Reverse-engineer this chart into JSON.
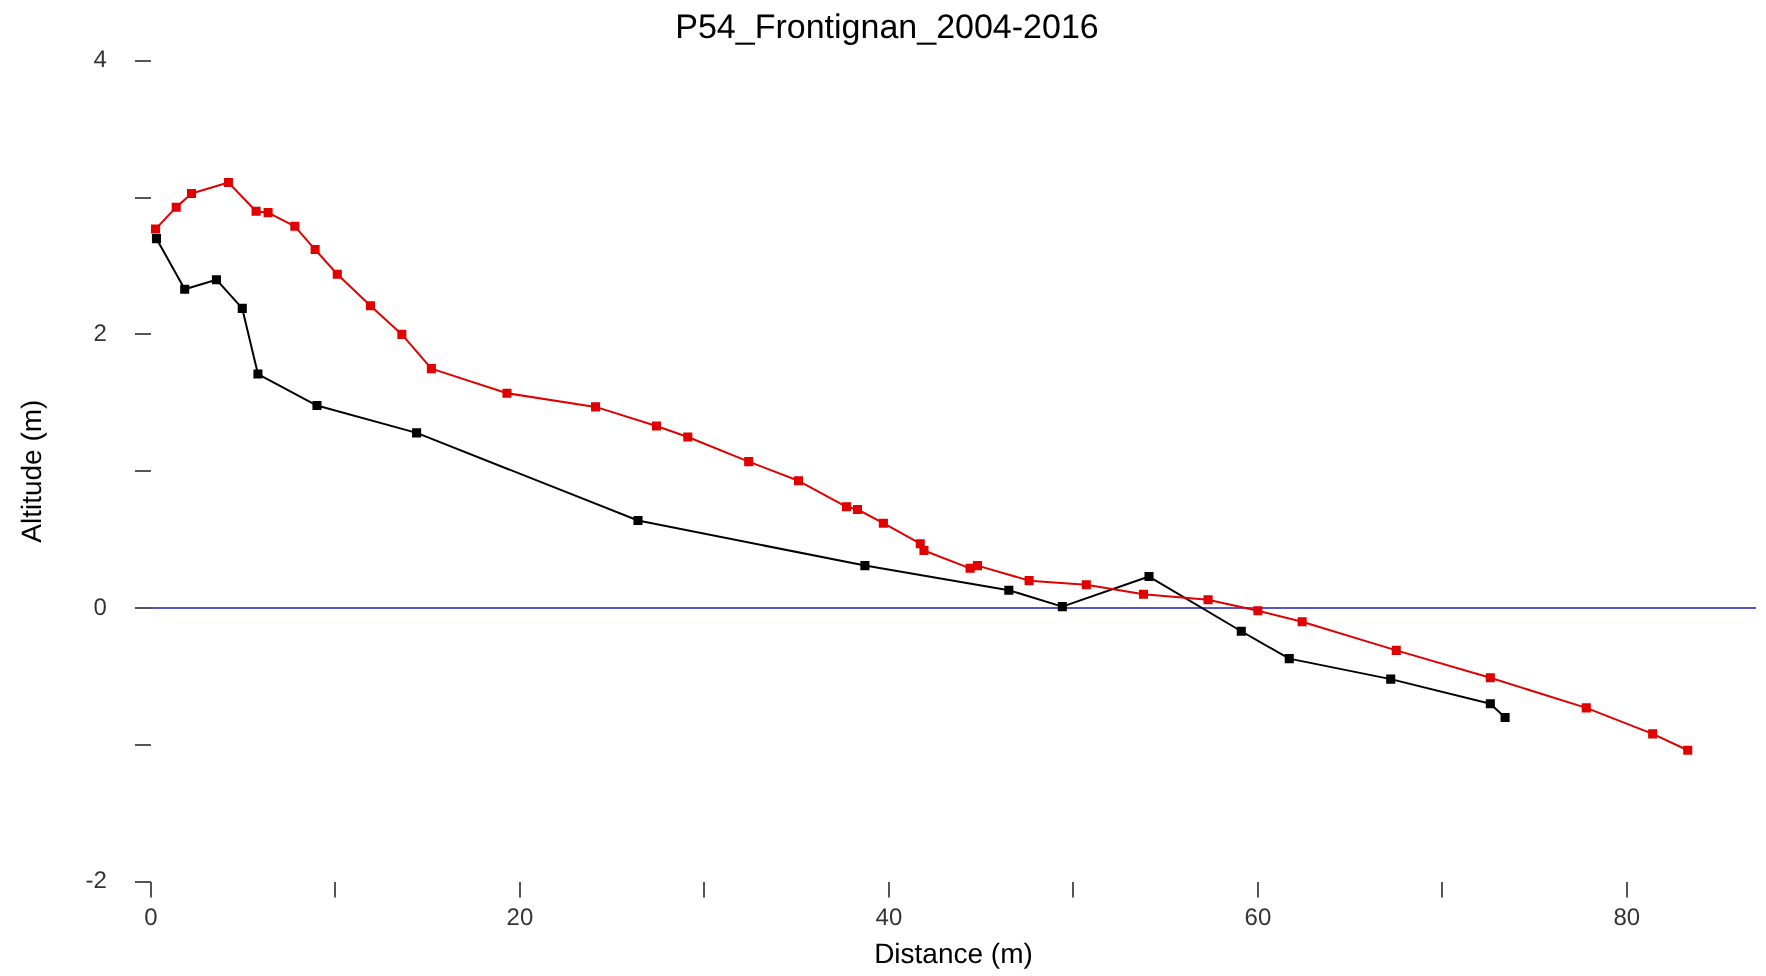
{
  "chart_data": {
    "type": "line",
    "title": "P54_Frontignan_2004-2016",
    "xlabel": "Distance (m)",
    "ylabel": "Altitude (m)",
    "xlim": [
      0,
      87
    ],
    "xticks": [
      0,
      {
        "value": 10,
        "label": null
      },
      20,
      {
        "value": 30,
        "label": null
      },
      40,
      {
        "value": 50,
        "label": null
      },
      60,
      {
        "value": 70,
        "label": null
      },
      80
    ],
    "ylim": [
      -2,
      4
    ],
    "yticks": [
      -2,
      {
        "value": -1,
        "label": null
      },
      0,
      {
        "value": 1,
        "label": null
      },
      2,
      {
        "value": 3,
        "label": null
      },
      4
    ],
    "grid": false,
    "legend": false,
    "marker": "square",
    "line_style": "solid",
    "ref_lines": [
      {
        "axis": "y",
        "value": 0,
        "color": "#5555cc"
      }
    ],
    "series": [
      {
        "color": "#e00000",
        "x": [
          0.25,
          1.37,
          2.2,
          4.2,
          5.7,
          6.35,
          7.8,
          8.9,
          10.1,
          11.9,
          13.6,
          15.2,
          19.3,
          24.1,
          27.4,
          29.1,
          32.4,
          35.1,
          37.7,
          38.3,
          39.7,
          41.7,
          41.9,
          44.4,
          44.8,
          47.6,
          50.7,
          53.8,
          57.3,
          60.0,
          62.4,
          67.5,
          72.6,
          77.8,
          81.4,
          83.3
        ],
        "values": [
          2.77,
          2.93,
          3.03,
          3.11,
          2.9,
          2.89,
          2.79,
          2.62,
          2.44,
          2.21,
          2.0,
          1.75,
          1.57,
          1.47,
          1.33,
          1.25,
          1.07,
          0.93,
          0.74,
          0.72,
          0.62,
          0.47,
          0.42,
          0.29,
          0.31,
          0.2,
          0.17,
          0.1,
          0.06,
          -0.02,
          -0.1,
          -0.31,
          -0.51,
          -0.73,
          -0.92,
          -1.04
        ]
      },
      {
        "color": "#000000",
        "x": [
          0.3,
          1.83,
          3.55,
          4.95,
          5.8,
          9.0,
          14.4,
          26.4,
          38.7,
          46.5,
          49.4,
          54.1,
          59.1,
          61.7,
          67.2,
          72.6,
          73.4
        ],
        "values": [
          2.7,
          2.33,
          2.4,
          2.19,
          1.71,
          1.48,
          1.28,
          0.64,
          0.31,
          0.13,
          0.01,
          0.23,
          -0.17,
          -0.37,
          -0.52,
          -0.7,
          -0.8
        ]
      }
    ]
  }
}
